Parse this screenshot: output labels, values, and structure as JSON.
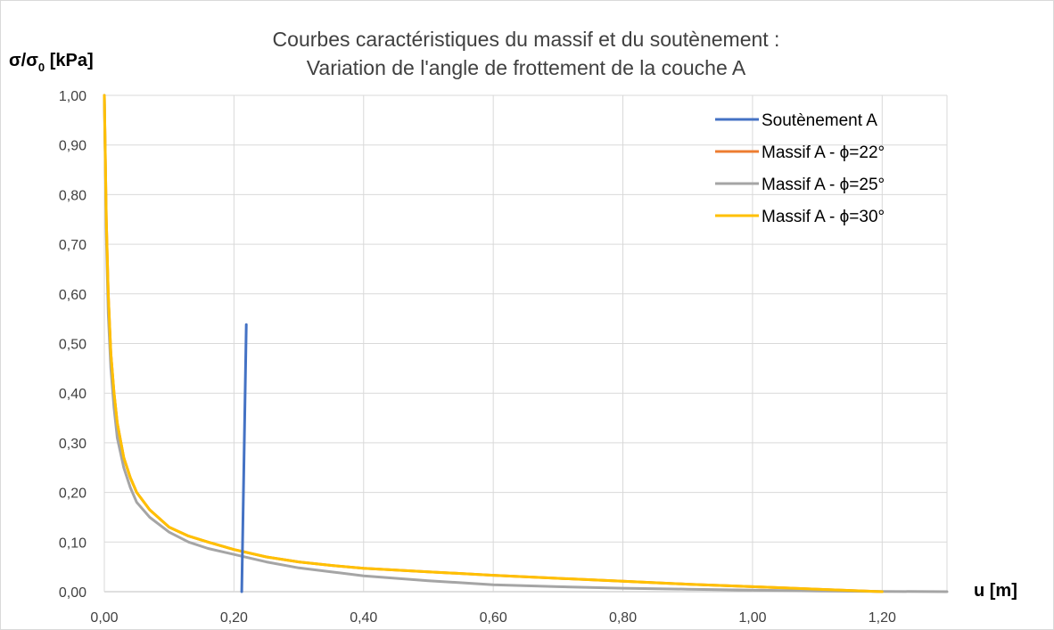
{
  "chart_data": {
    "type": "line",
    "title_line1": "Courbes caractéristiques du massif et du soutènement :",
    "title_line2": "Variation de l'angle de frottement de la couche A",
    "ylabel": "σ/σ",
    "ylabel_sub": "0",
    "ylabel_unit": " [kPa]",
    "xlabel": "u [m]",
    "xlim": [
      0,
      1.3
    ],
    "ylim": [
      0,
      1
    ],
    "x_ticks": [
      0,
      0.2,
      0.4,
      0.6,
      0.8,
      1.0,
      1.2
    ],
    "x_tick_labels": [
      "0,00",
      "0,20",
      "0,40",
      "0,60",
      "0,80",
      "1,00",
      "1,20"
    ],
    "y_ticks": [
      0,
      0.1,
      0.2,
      0.3,
      0.4,
      0.5,
      0.6,
      0.7,
      0.8,
      0.9,
      1.0
    ],
    "y_tick_labels": [
      "0,00",
      "0,10",
      "0,20",
      "0,30",
      "0,40",
      "0,50",
      "0,60",
      "0,70",
      "0,80",
      "0,90",
      "1,00"
    ],
    "grid": true,
    "legend_position": "top-right",
    "series": [
      {
        "name": "Soutènement A",
        "color": "#4472C4",
        "x": [
          0.212,
          0.219
        ],
        "y": [
          0.0,
          0.538
        ]
      },
      {
        "name": "Massif A - ϕ=22°",
        "color": "#ED7D31",
        "x": [
          0.0,
          0.003,
          0.006,
          0.01,
          0.015,
          0.02,
          0.03,
          0.04,
          0.05,
          0.07,
          0.1,
          0.13,
          0.16,
          0.2,
          0.25,
          0.3,
          0.35,
          0.4,
          0.5,
          0.6,
          0.7,
          0.8,
          0.9,
          1.0,
          1.1,
          1.2
        ],
        "y": [
          1.0,
          0.75,
          0.6,
          0.48,
          0.4,
          0.34,
          0.27,
          0.23,
          0.2,
          0.165,
          0.13,
          0.112,
          0.1,
          0.085,
          0.07,
          0.06,
          0.053,
          0.047,
          0.04,
          0.033,
          0.027,
          0.021,
          0.015,
          0.01,
          0.005,
          0.0
        ]
      },
      {
        "name": "Massif A - ϕ=25°",
        "color": "#A5A5A5",
        "x": [
          0.0,
          0.003,
          0.006,
          0.01,
          0.015,
          0.02,
          0.03,
          0.04,
          0.05,
          0.07,
          0.1,
          0.13,
          0.16,
          0.2,
          0.25,
          0.3,
          0.35,
          0.4,
          0.5,
          0.6,
          0.7,
          0.8,
          0.9,
          1.0,
          1.1,
          1.2,
          1.3
        ],
        "y": [
          1.0,
          0.72,
          0.56,
          0.45,
          0.37,
          0.31,
          0.25,
          0.21,
          0.18,
          0.15,
          0.12,
          0.1,
          0.087,
          0.075,
          0.06,
          0.048,
          0.04,
          0.032,
          0.022,
          0.014,
          0.01,
          0.007,
          0.005,
          0.003,
          0.0015,
          0.0005,
          0.0
        ]
      },
      {
        "name": "Massif A - ϕ=30°",
        "color": "#FFC000",
        "x": [
          0.0,
          0.003,
          0.006,
          0.01,
          0.015,
          0.02,
          0.03,
          0.04,
          0.05,
          0.07,
          0.1,
          0.13,
          0.16,
          0.2,
          0.25,
          0.3,
          0.35,
          0.4,
          0.5,
          0.6,
          0.7,
          0.8,
          0.9,
          1.0,
          1.1,
          1.2
        ],
        "y": [
          1.0,
          0.75,
          0.6,
          0.48,
          0.4,
          0.34,
          0.27,
          0.23,
          0.2,
          0.165,
          0.13,
          0.112,
          0.1,
          0.085,
          0.07,
          0.06,
          0.053,
          0.047,
          0.04,
          0.033,
          0.027,
          0.021,
          0.015,
          0.01,
          0.005,
          0.0
        ]
      }
    ]
  }
}
